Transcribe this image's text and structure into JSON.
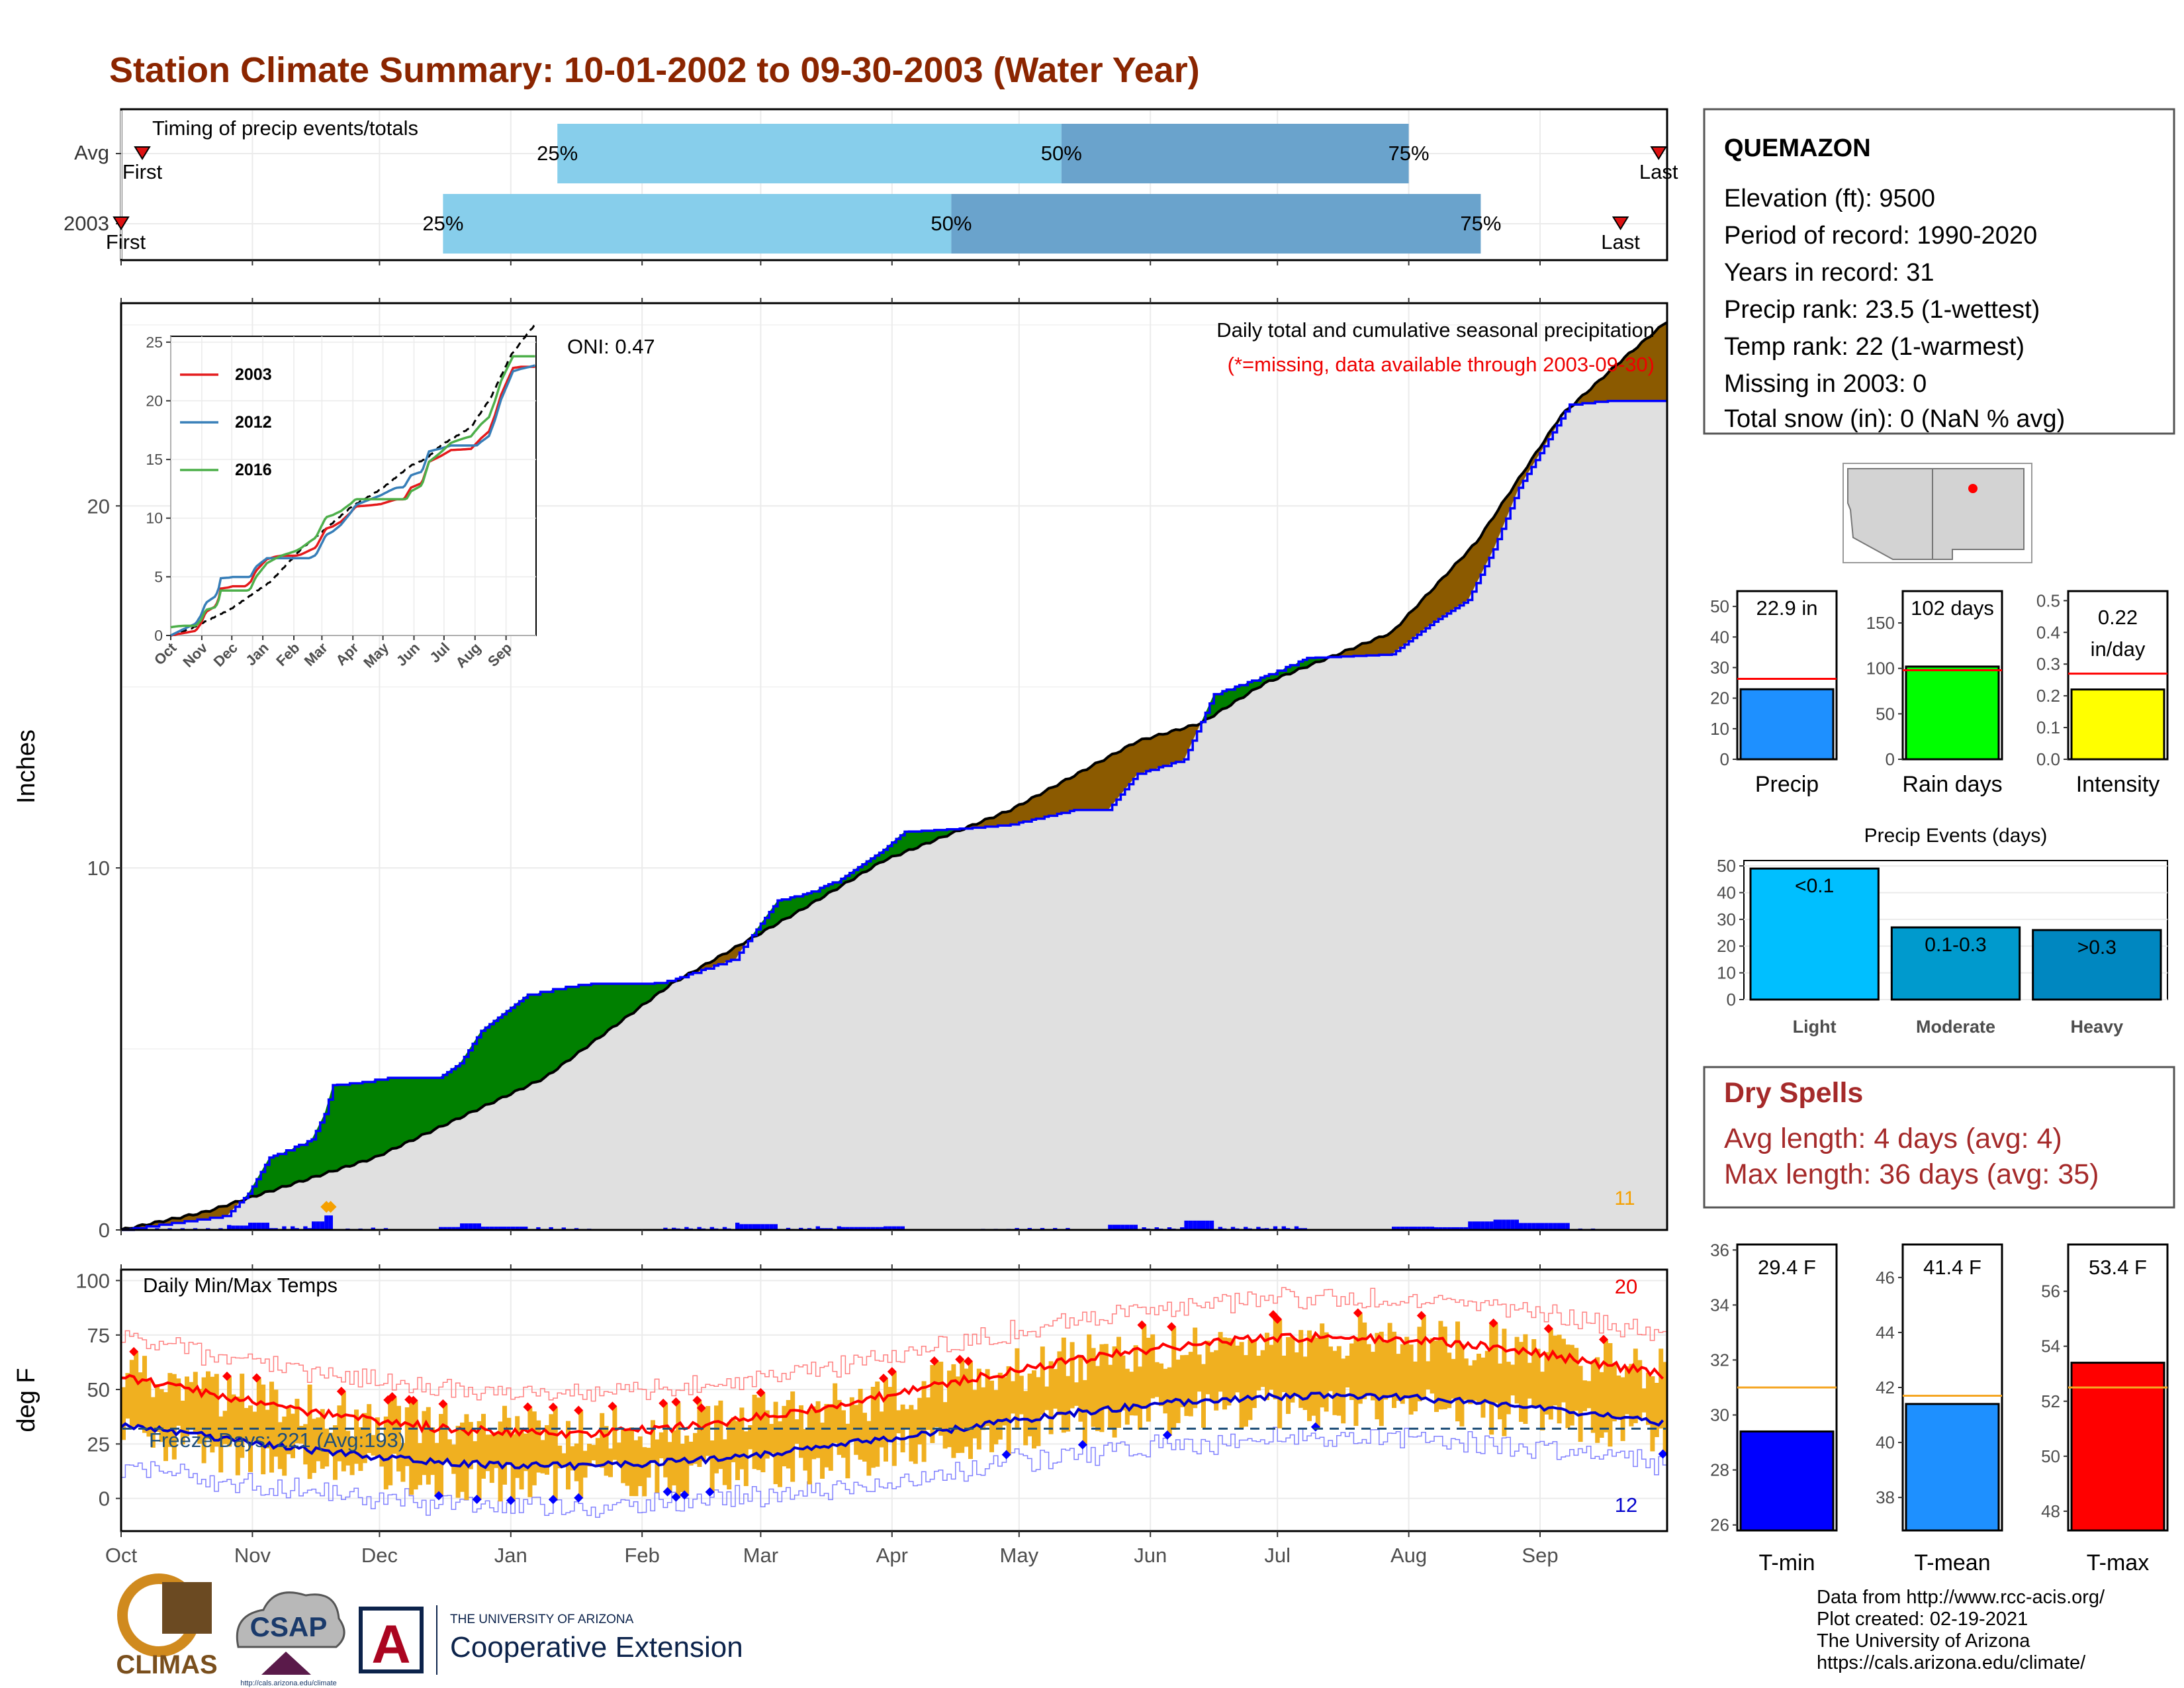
{
  "title": "Station Climate Summary: 10-01-2002 to 09-30-2003 (Water Year)",
  "timing": {
    "label": "Timing of precip events/totals",
    "rows": [
      {
        "name": "Avg",
        "first_label": "First",
        "last_label": "Last",
        "first_date": "2002-10-06",
        "last_date": "2003-09-29",
        "p25_date": "2003-01-12",
        "p50_date": "2003-05-11",
        "p75_date": "2003-08-01"
      },
      {
        "name": "2003",
        "first_label": "First",
        "last_label": "Last",
        "first_date": "2002-10-01",
        "last_date": "2003-09-20",
        "p25_date": "2002-12-16",
        "p50_date": "2003-04-15",
        "p75_date": "2003-08-18"
      }
    ],
    "pct_labels": [
      "25%",
      "50%",
      "75%"
    ],
    "colors": {
      "light": "#87ceeb",
      "dark": "#6aa3cc",
      "marker": "#dd1111"
    }
  },
  "precip": {
    "ylabel": "Inches",
    "subtitle": "Daily total and cumulative seasonal precipitation",
    "missing_note": "(*=missing, data available through 2003-09-30)",
    "oni": "ONI: 0.47",
    "count_label": "11",
    "y_ticks": [
      "0",
      "10",
      "20"
    ],
    "ylim": [
      0,
      25.6
    ],
    "colors": {
      "above": "#008000",
      "below": "#8b5a00",
      "observed": "#0000ff",
      "normal": "#000000",
      "fill": "#e0e0e0",
      "marker": "#f5a000"
    },
    "inset": {
      "x_ticks": [
        "Oct",
        "Nov",
        "Dec",
        "Jan",
        "Feb",
        "Mar",
        "Apr",
        "May",
        "Jun",
        "Jul",
        "Aug",
        "Sep"
      ],
      "y_ticks": [
        "0",
        "5",
        "10",
        "15",
        "20",
        "25"
      ],
      "ylim": [
        0,
        25
      ],
      "legend": [
        {
          "name": "2003",
          "color": "#e41a1c"
        },
        {
          "name": "2012",
          "color": "#377eb8"
        },
        {
          "name": "2016",
          "color": "#4daf4a"
        }
      ]
    }
  },
  "temps": {
    "label": "Daily Min/Max Temps",
    "ylabel": "deg F",
    "freeze": "Freeze Days: 221 (Avg:193)",
    "top_count": "20",
    "bottom_count": "12",
    "y_ticks": [
      "0",
      "25",
      "50",
      "75",
      "100"
    ],
    "ylim": [
      -15,
      105
    ],
    "freeze_line": 32,
    "colors": {
      "bar": "#f0b020",
      "max": "#ff0000",
      "min": "#0000cc",
      "hot": "#ff0000",
      "cold": "#0000ff"
    }
  },
  "x_months": [
    "Oct",
    "Nov",
    "Dec",
    "Jan",
    "Feb",
    "Mar",
    "Apr",
    "May",
    "Jun",
    "Jul",
    "Aug",
    "Sep"
  ],
  "station": {
    "name": "QUEMAZON",
    "lines": [
      "Elevation (ft): 9500",
      "Period of record: 1990-2020",
      "Years in record: 31",
      "Precip rank: 23.5 (1-wettest)",
      "Temp rank: 22 (1-warmest)",
      "Missing in 2003: 0",
      "Total snow (in): 0 (NaN % avg)"
    ]
  },
  "summary_bars": [
    {
      "label": "Precip",
      "value_label": "22.9 in",
      "value": 22.9,
      "avg": 26.3,
      "ylim": [
        0,
        55
      ],
      "ticks": [
        0,
        10,
        20,
        30,
        40,
        50
      ],
      "color": "#1e90ff"
    },
    {
      "label": "Rain days",
      "value_label": "102 days",
      "value": 102,
      "avg": 98,
      "ylim": [
        0,
        185
      ],
      "ticks": [
        0,
        50,
        100,
        150
      ],
      "color": "#00ff00"
    },
    {
      "label": "Intensity",
      "value_label": "0.22 in/day",
      "value": 0.22,
      "avg": 0.27,
      "ylim": [
        0,
        0.53
      ],
      "ticks": [
        0.0,
        0.1,
        0.2,
        0.3,
        0.4,
        0.5
      ],
      "color": "#ffff00"
    }
  ],
  "events": {
    "title": "Precip Events (days)",
    "categories": [
      "Light",
      "Moderate",
      "Heavy"
    ],
    "value_labels": [
      "<0.1",
      "0.1-0.3",
      ">0.3"
    ],
    "values": [
      49,
      27,
      26
    ],
    "ylim": [
      0,
      52
    ],
    "ticks": [
      0,
      10,
      20,
      30,
      40,
      50
    ],
    "colors": [
      "#00bfff",
      "#009acd",
      "#0087c0"
    ]
  },
  "dry_spells": {
    "title": "Dry Spells",
    "lines": [
      "Avg length: 4 days (avg: 4)",
      "Max length: 36 days (avg: 35)"
    ],
    "color": "#a52a2a"
  },
  "temp_bars": [
    {
      "label": "T-min",
      "value_label": "29.4 F",
      "value": 29.4,
      "avg": 31.0,
      "ylim": [
        25.8,
        36.2
      ],
      "ticks": [
        26,
        28,
        30,
        32,
        34,
        36
      ],
      "color": "#0000ff"
    },
    {
      "label": "T-mean",
      "value_label": "41.4 F",
      "value": 41.4,
      "avg": 41.7,
      "ylim": [
        36.8,
        47.2
      ],
      "ticks": [
        38,
        40,
        42,
        44,
        46
      ],
      "color": "#1e90ff"
    },
    {
      "label": "T-max",
      "value_label": "53.4 F",
      "value": 53.4,
      "avg": 52.5,
      "ylim": [
        47.3,
        57.7
      ],
      "ticks": [
        48,
        50,
        52,
        54,
        56
      ],
      "color": "#ff0000"
    }
  ],
  "footer": [
    "Data from http://www.rcc-acis.org/",
    "Plot created: 02-19-2021",
    "The University of Arizona",
    "https://cals.arizona.edu/climate/"
  ],
  "logos": {
    "climas": "CLIMAS",
    "csap": "CSAP",
    "csap_url": "http://cals.arizona.edu/climate",
    "ua_top": "THE UNIVERSITY OF ARIZONA",
    "ua_main": "Cooperative Extension",
    "ua_letter": "A"
  }
}
